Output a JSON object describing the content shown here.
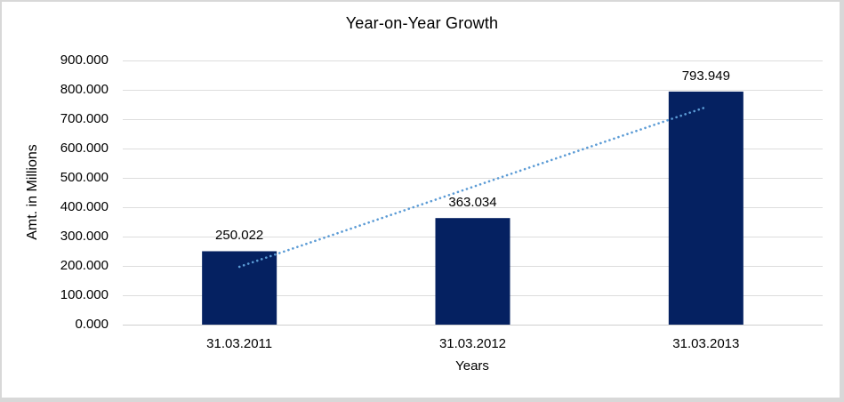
{
  "chart_data": {
    "type": "bar",
    "title": "Year-on-Year Growth",
    "xlabel": "Years",
    "ylabel": "Amt. in Millions",
    "categories": [
      "31.03.2011",
      "31.03.2012",
      "31.03.2013"
    ],
    "values": [
      250.022,
      363.034,
      793.949
    ],
    "value_labels": [
      "250.022",
      "363.034",
      "793.949"
    ],
    "y_ticks": [
      "0.000",
      "100.000",
      "200.000",
      "300.000",
      "400.000",
      "500.000",
      "600.000",
      "700.000",
      "800.000",
      "900.000"
    ],
    "ylim": [
      0,
      900
    ],
    "grid": true,
    "legend": "none",
    "trendline": {
      "type": "linear",
      "style": "dotted",
      "start_value": 197,
      "end_value": 741
    },
    "colors": {
      "bar": "#052161",
      "trendline": "#5B9BD5",
      "gridline": "#DDDDDD",
      "axis_line": "#CFCFCF",
      "frame_border": "#D8D8D8",
      "text": "#000000"
    }
  }
}
